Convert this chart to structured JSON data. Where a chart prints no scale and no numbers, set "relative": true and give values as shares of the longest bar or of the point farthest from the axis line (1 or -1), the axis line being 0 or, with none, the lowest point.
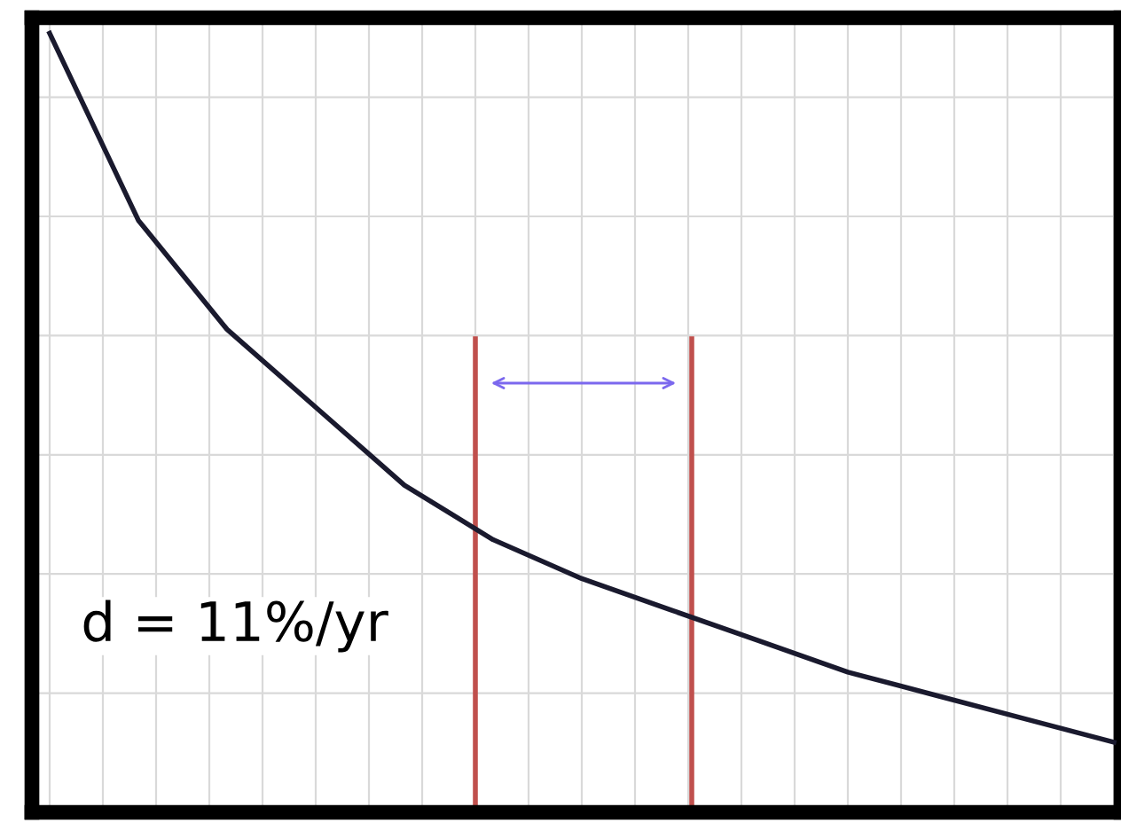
{
  "chart_data": {
    "type": "line",
    "relative": true,
    "categories": [
      null,
      null,
      null,
      null,
      null,
      null,
      null,
      null,
      null,
      null,
      null,
      null,
      null
    ],
    "series": [
      {
        "color": "#1a1a2e",
        "values": [
          1.0,
          0.76,
          0.62,
          0.52,
          0.42,
          0.35,
          0.3,
          0.26,
          0.22,
          0.18,
          0.15,
          0.12,
          0.09
        ]
      }
    ],
    "annotations": [
      "d = 11%/yr"
    ],
    "grid": true,
    "marker": "none",
    "line_style": "solid"
  }
}
